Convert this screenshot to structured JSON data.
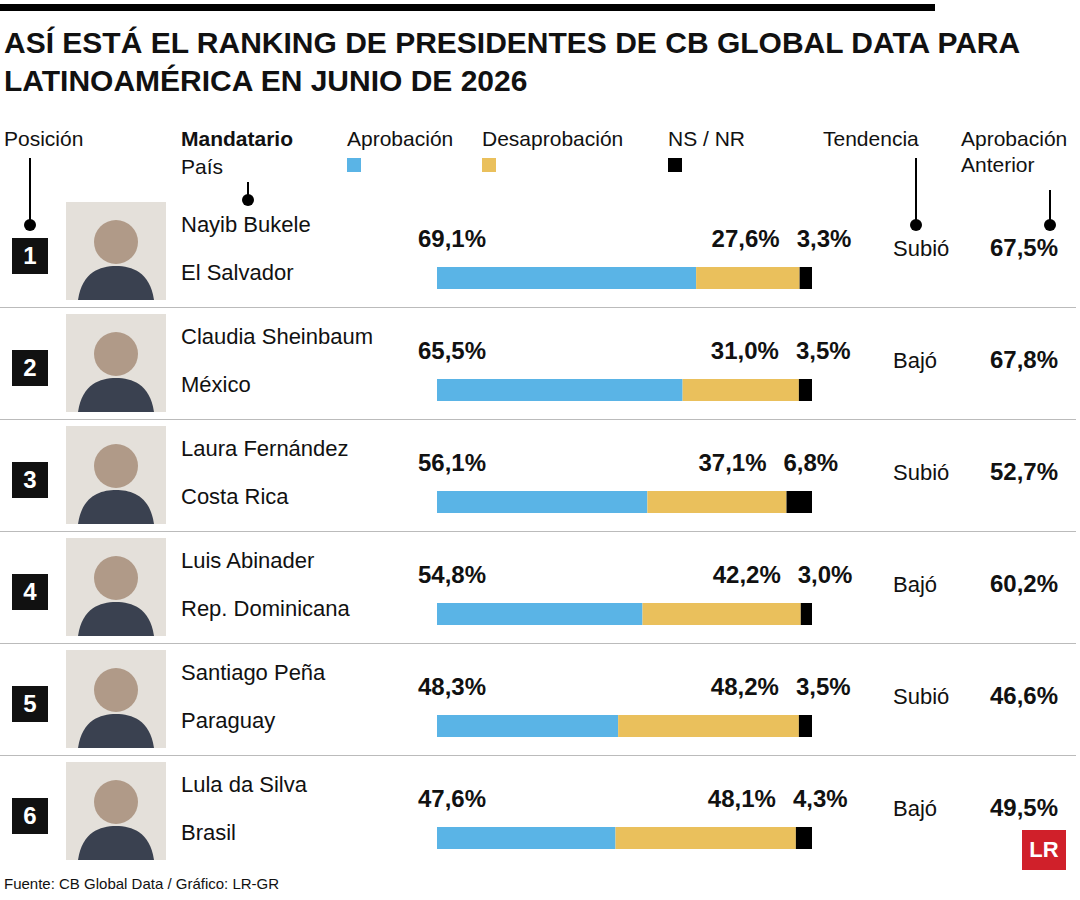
{
  "chart_data": {
    "type": "bar",
    "orientation": "horizontal",
    "stacked": true,
    "data_labels": true,
    "tick_labels": false,
    "legend": "top",
    "title": "ASÍ ESTÁ EL RANKING DE PRESIDENTES DE CB GLOBAL DATA PARA LATINOAMÉRICA EN JUNIO DE 2026",
    "position_header": "Posición",
    "leader_header": "Mandatario",
    "country_header": "País",
    "trend_header": "Tendencia",
    "previous_header": "Aprobación Anterior",
    "ranks": [
      1,
      2,
      3,
      4,
      5,
      6
    ],
    "categories": [
      "Nayib Bukele",
      "Claudia Sheinbaum",
      "Laura Fernández",
      "Luis Abinader",
      "Santiago Peña",
      "Lula da Silva"
    ],
    "countries": [
      "El Salvador",
      "México",
      "Costa Rica",
      "Rep. Dominicana",
      "Paraguay",
      "Brasil"
    ],
    "xlim": [
      0,
      100
    ],
    "series": [
      {
        "name": "Aprobación",
        "color": "#5ab4e6",
        "values": [
          69.1,
          65.5,
          56.1,
          54.8,
          48.3,
          47.6
        ],
        "value_labels": [
          "69,1%",
          "65,5%",
          "56,1%",
          "54,8%",
          "48,3%",
          "47,6%"
        ]
      },
      {
        "name": "Desaprobación",
        "color": "#eac05c",
        "values": [
          27.6,
          31.0,
          37.1,
          42.2,
          48.2,
          48.1
        ],
        "value_labels": [
          "27,6%",
          "31,0%",
          "37,1%",
          "42,2%",
          "48,2%",
          "48,1%"
        ]
      },
      {
        "name": "NS / NR",
        "color": "#000000",
        "values": [
          3.3,
          3.5,
          6.8,
          3.0,
          3.5,
          4.3
        ],
        "value_labels": [
          "3,3%",
          "3,5%",
          "6,8%",
          "3,0%",
          "3,5%",
          "4,3%"
        ]
      }
    ],
    "trend": [
      "Subió",
      "Bajó",
      "Subió",
      "Bajó",
      "Subió",
      "Bajó"
    ],
    "previous_approval": {
      "values": [
        67.5,
        67.8,
        52.7,
        60.2,
        46.6,
        49.5
      ],
      "value_labels": [
        "67,5%",
        "67,8%",
        "52,7%",
        "60,2%",
        "46,6%",
        "49,5%"
      ]
    },
    "source": "Fuente: CB Global Data / Gráfico: LR-GR",
    "logo": "LR"
  }
}
